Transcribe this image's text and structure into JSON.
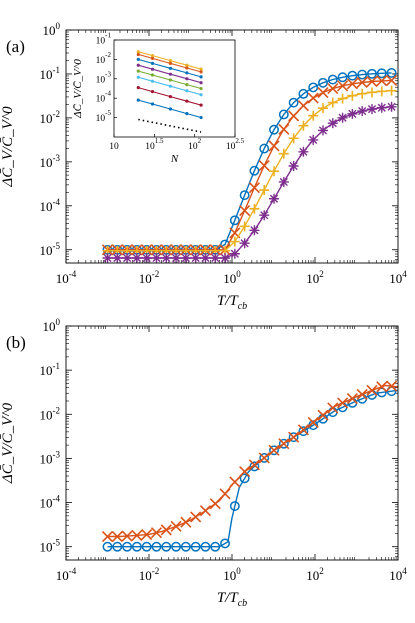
{
  "chart_data": [
    {
      "type": "line",
      "panel_label": "(a)",
      "xlabel": "T/T_cb",
      "ylabel": "ΔC̄_V/C̄_V^0",
      "xscale": "log",
      "yscale": "log",
      "xlim": [
        0.0001,
        10000
      ],
      "ylim": [
        5e-06,
        1
      ],
      "x_tick_labels": [
        "10^-4",
        "10^-2",
        "10^0",
        "10^2",
        "10^4"
      ],
      "y_tick_labels": [
        "10^-5",
        "10^-4",
        "10^-3",
        "10^-2",
        "10^-1",
        "10^0"
      ],
      "grid": false,
      "series": [
        {
          "color": "#0072BD",
          "marker": "circle",
          "plateau": 1e-05,
          "rise_start": 0.6,
          "x_mid": 1.6,
          "y_max": 0.11
        },
        {
          "color": "#D95319",
          "marker": "x",
          "plateau": 1e-05,
          "rise_start": 0.75,
          "x_mid": 2.5,
          "y_max": 0.075
        },
        {
          "color": "#EDB120",
          "marker": "plus",
          "plateau": 9.5e-06,
          "rise_start": 0.8,
          "x_mid": 6,
          "y_max": 0.045
        },
        {
          "color": "#7E2F8E",
          "marker": "asterisk",
          "plateau": 6.5e-06,
          "rise_start": 0.9,
          "x_mid": 12,
          "y_max": 0.02
        }
      ],
      "inset": {
        "type": "line",
        "xlabel": "N",
        "ylabel": "ΔC̄_V/C̄_V^0",
        "xscale": "log",
        "yscale": "log",
        "xlim": [
          10,
          316
        ],
        "ylim": [
          1e-06,
          0.1
        ],
        "x_tick_labels": [
          "10",
          "10^1.5",
          "10^2",
          "10^2.5"
        ],
        "y_tick_labels": [
          "10^-5",
          "10^-4",
          "10^-3",
          "10^-2",
          "10^-1"
        ],
        "N": [
          20,
          30,
          50,
          80,
          120
        ],
        "series": [
          {
            "color": "#EDB120",
            "start": 0.025
          },
          {
            "color": "#D95319",
            "start": 0.018
          },
          {
            "color": "#0072BD",
            "start": 0.01
          },
          {
            "color": "#7E2F8E",
            "start": 0.005
          },
          {
            "color": "#77AC30",
            "start": 0.0025
          },
          {
            "color": "#4DBEEE",
            "start": 0.0012
          },
          {
            "color": "#A2142F",
            "start": 0.00035
          },
          {
            "color": "#0072BD",
            "start": 8e-05
          }
        ],
        "reference": {
          "color": "#000000",
          "style": "dotted",
          "start": 8e-06,
          "end": 1.8e-06
        }
      }
    },
    {
      "type": "line",
      "panel_label": "(b)",
      "xlabel": "T/T_cb",
      "ylabel": "ΔC̄_V/C̄_V^0",
      "xscale": "log",
      "yscale": "log",
      "xlim": [
        0.0001,
        10000
      ],
      "ylim": [
        5e-06,
        1
      ],
      "x_tick_labels": [
        "10^-4",
        "10^-2",
        "10^0",
        "10^2",
        "10^4"
      ],
      "y_tick_labels": [
        "10^-5",
        "10^-4",
        "10^-3",
        "10^-2",
        "10^-1",
        "10^0"
      ],
      "grid": false,
      "series": [
        {
          "color": "#0072BD",
          "marker": "circle",
          "x": [
            0.001,
            0.5,
            0.8,
            1,
            1.5,
            2.5,
            5,
            10,
            30,
            100,
            300,
            1000,
            3000,
            10000
          ],
          "y": [
            1e-05,
            1e-05,
            1.3e-05,
            4.5e-05,
            0.00022,
            0.0005,
            0.0009,
            0.0015,
            0.003,
            0.006,
            0.012,
            0.02,
            0.03,
            0.035
          ]
        },
        {
          "color": "#D95319",
          "marker": "x",
          "x": [
            0.001,
            0.002,
            0.005,
            0.01,
            0.02,
            0.05,
            0.1,
            0.2,
            0.5,
            1,
            2,
            5,
            10,
            30,
            100,
            300,
            1000,
            3000,
            5000,
            10000
          ],
          "y": [
            1.7e-05,
            1.7e-05,
            1.8e-05,
            1.9e-05,
            2.2e-05,
            3e-05,
            4e-05,
            6e-05,
            0.00011,
            0.00025,
            0.0005,
            0.0009,
            0.0015,
            0.003,
            0.007,
            0.015,
            0.025,
            0.038,
            0.045,
            0.042
          ]
        }
      ]
    }
  ]
}
